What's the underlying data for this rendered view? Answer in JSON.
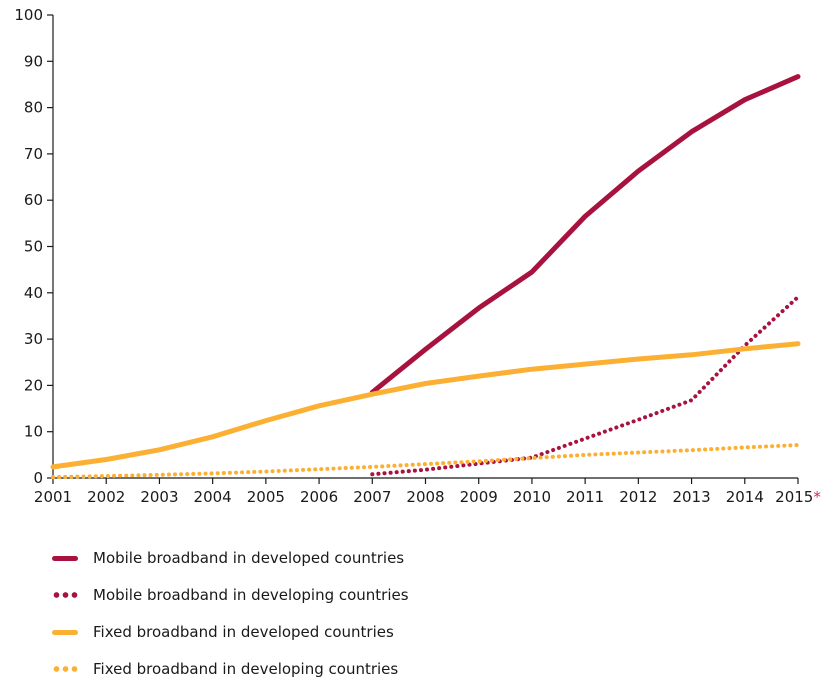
{
  "chart_data": {
    "type": "line",
    "x": [
      2001,
      2002,
      2003,
      2004,
      2005,
      2006,
      2007,
      2008,
      2009,
      2010,
      2011,
      2012,
      2013,
      2014,
      2015
    ],
    "x_tick_labels": [
      "2001",
      "2002",
      "2003",
      "2004",
      "2005",
      "2006",
      "2007",
      "2008",
      "2009",
      "2010",
      "2011",
      "2012",
      "2013",
      "2014",
      "2015"
    ],
    "last_tick_marker": "*",
    "yticks": [
      0,
      10,
      20,
      30,
      40,
      50,
      60,
      70,
      80,
      90,
      100
    ],
    "ylim": [
      0,
      100
    ],
    "xlim": [
      2001,
      2015
    ],
    "grid": false,
    "legend_position": "bottom-left",
    "series": [
      {
        "name": "Mobile broadband in developed countries",
        "color": "#a8123e",
        "style": "solid",
        "values": [
          null,
          null,
          null,
          null,
          null,
          null,
          18.5,
          27.8,
          36.7,
          44.5,
          56.5,
          66.3,
          74.8,
          81.7,
          86.7
        ]
      },
      {
        "name": "Mobile broadband in developing countries",
        "color": "#a8123e",
        "style": "dotted",
        "values": [
          null,
          null,
          null,
          null,
          null,
          null,
          0.8,
          1.8,
          3.1,
          4.4,
          8.5,
          12.6,
          16.8,
          28.6,
          39.1
        ]
      },
      {
        "name": "Fixed broadband in developed countries",
        "color": "#fbb034",
        "style": "solid",
        "values": [
          2.4,
          4.0,
          6.1,
          8.9,
          12.4,
          15.6,
          18.1,
          20.4,
          22.0,
          23.5,
          24.6,
          25.7,
          26.6,
          27.9,
          29.0
        ]
      },
      {
        "name": "Fixed broadband in developing countries",
        "color": "#fbb034",
        "style": "dotted",
        "values": [
          0.2,
          0.4,
          0.7,
          1.0,
          1.4,
          1.9,
          2.4,
          3.0,
          3.6,
          4.3,
          5.0,
          5.5,
          6.0,
          6.6,
          7.1
        ]
      }
    ]
  }
}
